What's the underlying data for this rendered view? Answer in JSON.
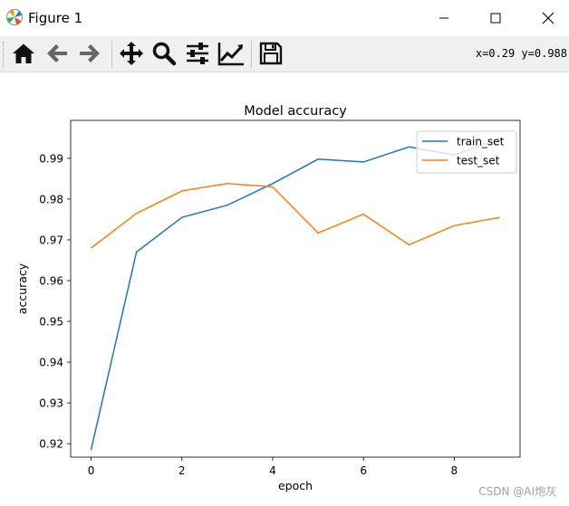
{
  "window": {
    "title": "Figure 1",
    "app_icon": "matplotlib-icon",
    "controls": [
      "minimize-icon",
      "maximize-icon",
      "close-icon"
    ]
  },
  "toolbar": {
    "buttons": [
      "home-icon",
      "back-icon",
      "forward-icon",
      "pan-icon",
      "zoom-icon",
      "configure-subplots-icon",
      "edit-axis-icon",
      "save-icon"
    ],
    "coords": "x=0.29 y=0.988"
  },
  "chart_data": {
    "type": "line",
    "title": "Model accuracy",
    "xlabel": "epoch",
    "ylabel": "accuracy",
    "x": [
      0,
      1,
      2,
      3,
      4,
      5,
      6,
      7,
      8,
      9
    ],
    "xlim": [
      -0.45,
      9.45
    ],
    "ylim": [
      0.9167,
      0.9993
    ],
    "xticks": [
      0,
      2,
      4,
      6,
      8
    ],
    "yticks": [
      0.92,
      0.93,
      0.94,
      0.95,
      0.96,
      0.97,
      0.98,
      0.99
    ],
    "grid": false,
    "legend_position": "top-right",
    "series": [
      {
        "name": "train_set",
        "color": "#1f77b4",
        "values": [
          0.9185,
          0.967,
          0.9755,
          0.9785,
          0.9838,
          0.9898,
          0.9891,
          0.9928,
          0.9908,
          0.9948
        ]
      },
      {
        "name": "test_set",
        "color": "#ff7f0e",
        "values": [
          0.968,
          0.9765,
          0.982,
          0.9838,
          0.983,
          0.9717,
          0.9763,
          0.9688,
          0.9735,
          0.9755
        ]
      }
    ]
  },
  "watermark": "CSDN @AI炮灰"
}
